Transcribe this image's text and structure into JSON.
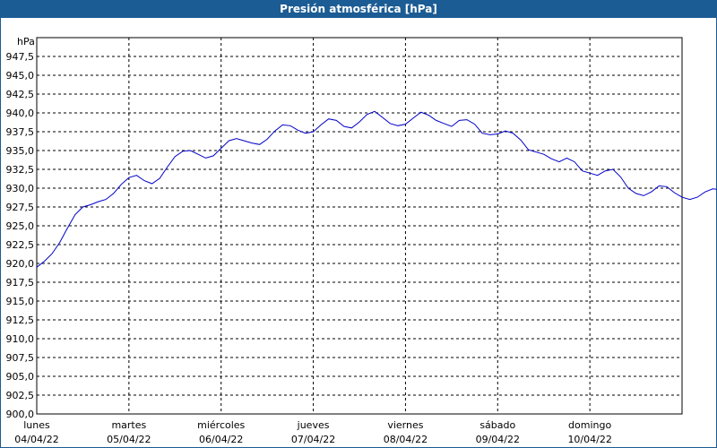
{
  "window": {
    "title": "Presión atmosférica [hPa]"
  },
  "chart_data": {
    "type": "line",
    "title": "Presión atmosférica [hPa]",
    "ylabel": "hPa",
    "ylim": [
      900,
      950
    ],
    "grid": true,
    "line_color": "#0000c8",
    "yticks": [
      "900,0",
      "902,5",
      "905,0",
      "907,5",
      "910,0",
      "912,5",
      "915,0",
      "917,5",
      "920,0",
      "922,5",
      "925,0",
      "927,5",
      "930,0",
      "932,5",
      "935,0",
      "937,5",
      "940,0",
      "942,5",
      "945,0",
      "947,5"
    ],
    "x_ticks": [
      {
        "day": "lunes",
        "date": "04/04/22"
      },
      {
        "day": "martes",
        "date": "05/04/22"
      },
      {
        "day": "miércoles",
        "date": "06/04/22"
      },
      {
        "day": "jueves",
        "date": "07/04/22"
      },
      {
        "day": "viernes",
        "date": "08/04/22"
      },
      {
        "day": "sábado",
        "date": "09/04/22"
      },
      {
        "day": "domingo",
        "date": "10/04/22"
      }
    ],
    "series": [
      {
        "points": [
          [
            "04/04/22 00:00",
            919.5
          ],
          [
            "04/04/22 02:00",
            920.3
          ],
          [
            "04/04/22 04:00",
            921.3
          ],
          [
            "04/04/22 06:00",
            922.8
          ],
          [
            "04/04/22 08:00",
            924.7
          ],
          [
            "04/04/22 10:00",
            926.5
          ],
          [
            "04/04/22 12:00",
            927.5
          ],
          [
            "04/04/22 14:00",
            927.8
          ],
          [
            "04/04/22 16:00",
            928.2
          ],
          [
            "04/04/22 18:00",
            928.5
          ],
          [
            "04/04/22 20:00",
            929.3
          ],
          [
            "04/04/22 22:00",
            930.5
          ],
          [
            "05/04/22 00:00",
            931.4
          ],
          [
            "05/04/22 02:00",
            931.7
          ],
          [
            "05/04/22 04:00",
            931.0
          ],
          [
            "05/04/22 06:00",
            930.6
          ],
          [
            "05/04/22 08:00",
            931.3
          ],
          [
            "05/04/22 10:00",
            932.8
          ],
          [
            "05/04/22 12:00",
            934.2
          ],
          [
            "05/04/22 14:00",
            934.9
          ],
          [
            "05/04/22 16:00",
            935.0
          ],
          [
            "05/04/22 18:00",
            934.5
          ],
          [
            "05/04/22 20:00",
            934.0
          ],
          [
            "05/04/22 22:00",
            934.3
          ],
          [
            "06/04/22 00:00",
            935.3
          ],
          [
            "06/04/22 02:00",
            936.3
          ],
          [
            "06/04/22 04:00",
            936.6
          ],
          [
            "06/04/22 06:00",
            936.3
          ],
          [
            "06/04/22 08:00",
            936.0
          ],
          [
            "06/04/22 10:00",
            935.8
          ],
          [
            "06/04/22 12:00",
            936.5
          ],
          [
            "06/04/22 14:00",
            937.6
          ],
          [
            "06/04/22 16:00",
            938.4
          ],
          [
            "06/04/22 18:00",
            938.3
          ],
          [
            "06/04/22 20:00",
            937.7
          ],
          [
            "06/04/22 22:00",
            937.3
          ],
          [
            "07/04/22 00:00",
            937.5
          ],
          [
            "07/04/22 02:00",
            938.4
          ],
          [
            "07/04/22 04:00",
            939.2
          ],
          [
            "07/04/22 06:00",
            939.0
          ],
          [
            "07/04/22 08:00",
            938.2
          ],
          [
            "07/04/22 10:00",
            938.0
          ],
          [
            "07/04/22 12:00",
            938.8
          ],
          [
            "07/04/22 14:00",
            939.8
          ],
          [
            "07/04/22 16:00",
            940.2
          ],
          [
            "07/04/22 18:00",
            939.4
          ],
          [
            "07/04/22 20:00",
            938.6
          ],
          [
            "07/04/22 22:00",
            938.3
          ],
          [
            "08/04/22 00:00",
            938.5
          ],
          [
            "08/04/22 02:00",
            939.3
          ],
          [
            "08/04/22 04:00",
            940.1
          ],
          [
            "08/04/22 06:00",
            939.7
          ],
          [
            "08/04/22 08:00",
            939.0
          ],
          [
            "08/04/22 10:00",
            938.6
          ],
          [
            "08/04/22 12:00",
            938.2
          ],
          [
            "08/04/22 14:00",
            939.0
          ],
          [
            "08/04/22 16:00",
            939.1
          ],
          [
            "08/04/22 18:00",
            938.5
          ],
          [
            "08/04/22 20:00",
            937.3
          ],
          [
            "08/04/22 22:00",
            937.1
          ],
          [
            "09/04/22 00:00",
            937.2
          ],
          [
            "09/04/22 02:00",
            937.6
          ],
          [
            "09/04/22 04:00",
            937.3
          ],
          [
            "09/04/22 06:00",
            936.4
          ],
          [
            "09/04/22 08:00",
            935.1
          ],
          [
            "09/04/22 10:00",
            934.8
          ],
          [
            "09/04/22 12:00",
            934.5
          ],
          [
            "09/04/22 14:00",
            933.9
          ],
          [
            "09/04/22 16:00",
            933.5
          ],
          [
            "09/04/22 18:00",
            934.0
          ],
          [
            "09/04/22 20:00",
            933.5
          ],
          [
            "09/04/22 22:00",
            932.3
          ],
          [
            "10/04/22 00:00",
            932.0
          ],
          [
            "10/04/22 02:00",
            931.7
          ],
          [
            "10/04/22 04:00",
            932.3
          ],
          [
            "10/04/22 06:00",
            932.5
          ],
          [
            "10/04/22 08:00",
            931.5
          ],
          [
            "10/04/22 10:00",
            930.0
          ],
          [
            "10/04/22 12:00",
            929.3
          ],
          [
            "10/04/22 14:00",
            929.0
          ],
          [
            "10/04/22 16:00",
            929.5
          ],
          [
            "10/04/22 18:00",
            930.3
          ],
          [
            "10/04/22 20:00",
            930.2
          ],
          [
            "10/04/22 22:00",
            929.4
          ],
          [
            "11/04/22 00:00",
            928.8
          ],
          [
            "11/04/22 02:00",
            928.5
          ],
          [
            "11/04/22 04:00",
            928.8
          ],
          [
            "11/04/22 06:00",
            929.5
          ],
          [
            "11/04/22 08:00",
            929.9
          ],
          [
            "11/04/22 10:00",
            929.8
          ]
        ]
      }
    ]
  }
}
